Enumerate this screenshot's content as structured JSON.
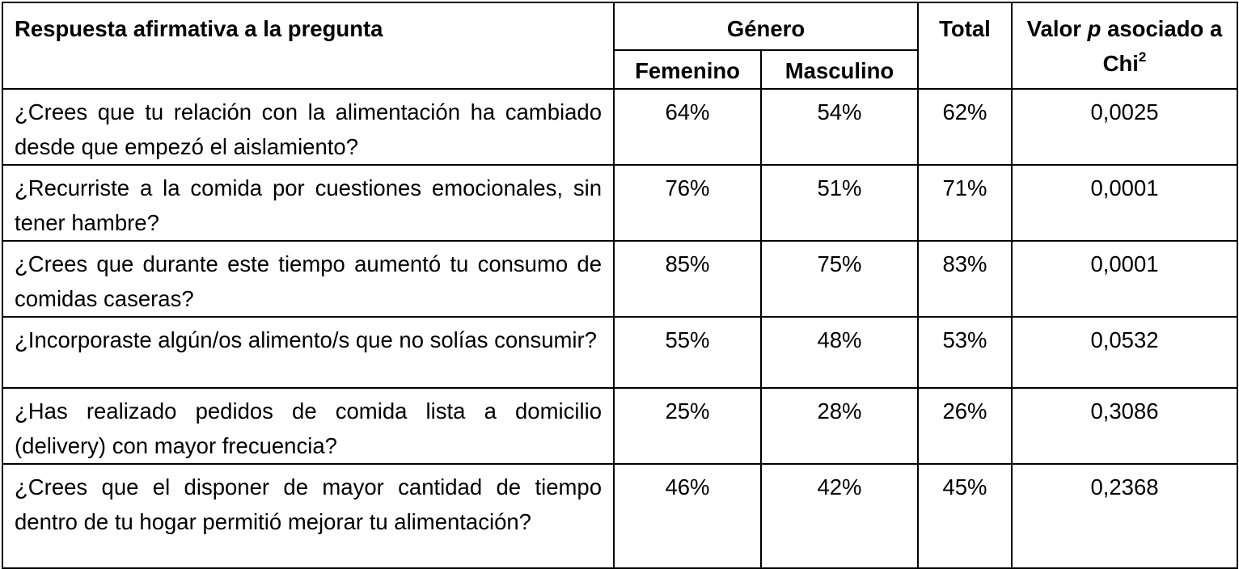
{
  "header": {
    "question": "Respuesta afirmativa a la pregunta",
    "gender": "Género",
    "female": "Femenino",
    "male": "Masculino",
    "total": "Total",
    "pvalue_prefix": "Valor ",
    "pvalue_p": "p",
    "pvalue_mid": " asociado a Chi",
    "pvalue_sup": "2"
  },
  "rows": [
    {
      "question": "¿Crees que tu relación con la alimentación ha cambiado desde que empezó el aislamiento?",
      "female": "64%",
      "male": "54%",
      "total": "62%",
      "pvalue": "0,0025"
    },
    {
      "question": "¿Recurriste a la comida por cuestiones emocionales, sin tener hambre?",
      "female": "76%",
      "male": "51%",
      "total": "71%",
      "pvalue": "0,0001"
    },
    {
      "question": "¿Crees que durante este tiempo aumentó tu consumo de comidas caseras?",
      "female": "85%",
      "male": "75%",
      "total": "83%",
      "pvalue": "0,0001"
    },
    {
      "question": "¿Incorporaste algún/os alimento/s que no solías consumir?",
      "female": "55%",
      "male": "48%",
      "total": "53%",
      "pvalue": "0,0532"
    },
    {
      "question": "¿Has realizado pedidos de comida lista a domicilio (delivery) con mayor frecuencia?",
      "female": "25%",
      "male": "28%",
      "total": "26%",
      "pvalue": "0,3086"
    },
    {
      "question": "¿Crees que el disponer de mayor cantidad de tiempo dentro de tu hogar permitió mejorar tu alimentación?",
      "female": "46%",
      "male": "42%",
      "total": "45%",
      "pvalue": "0,2368"
    }
  ]
}
